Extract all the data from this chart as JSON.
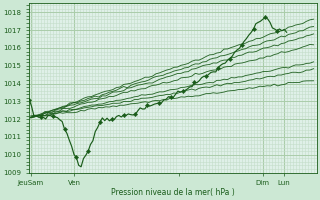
{
  "bg_color": "#cce8d4",
  "plot_bg_color": "#dff0e8",
  "grid_major_color": "#aaccaa",
  "grid_minor_color": "#c4ddc8",
  "line_color": "#1a5c1a",
  "ylabel_text": "Pression niveau de la mer( hPa )",
  "ylim": [
    1009,
    1018.5
  ],
  "yticks": [
    1009,
    1010,
    1011,
    1012,
    1013,
    1014,
    1015,
    1016,
    1017,
    1018
  ],
  "xlim": [
    0,
    9.6
  ],
  "x_day_ticks": [
    0.05,
    1.5,
    5.0,
    7.8,
    8.5
  ],
  "x_day_labels": [
    "JeuSam",
    "Ven",
    "",
    "Dim",
    "Lun"
  ],
  "x_major_vlines": [
    0.05,
    1.5,
    7.8,
    8.5
  ],
  "forecast_starts_x": 0.05,
  "forecast_starts_y": 1012.1,
  "forecast_ends": [
    [
      9.5,
      1014.8
    ],
    [
      9.5,
      1015.2
    ],
    [
      9.5,
      1016.2
    ],
    [
      9.5,
      1016.8
    ],
    [
      9.5,
      1017.2
    ],
    [
      9.5,
      1017.6
    ],
    [
      9.5,
      1014.2
    ]
  ],
  "obs_dip_x": 1.7,
  "obs_dip_y": 1009.2
}
